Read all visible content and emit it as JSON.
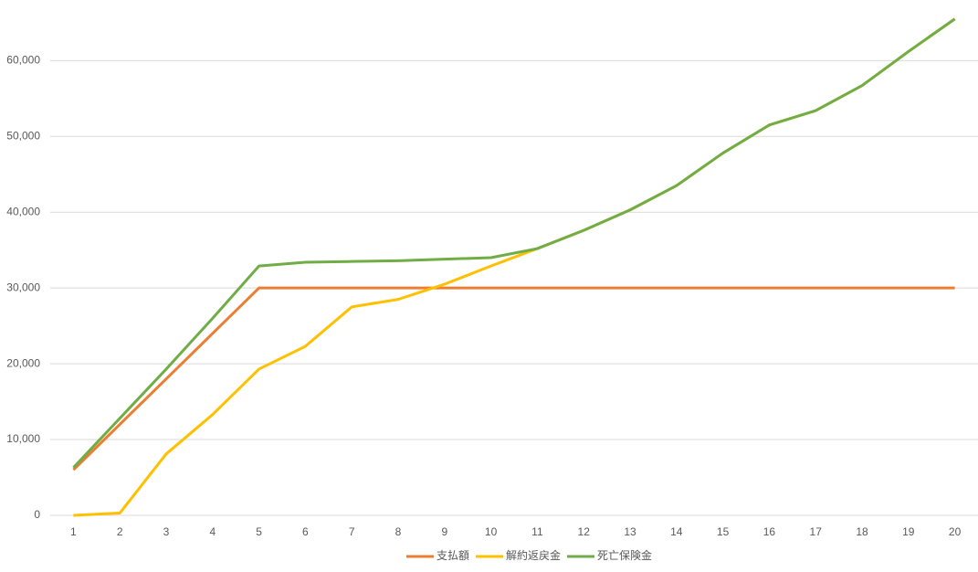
{
  "chart_data": {
    "type": "line",
    "categories": [
      "1",
      "2",
      "3",
      "4",
      "5",
      "6",
      "7",
      "8",
      "9",
      "10",
      "11",
      "12",
      "13",
      "14",
      "15",
      "16",
      "17",
      "18",
      "19",
      "20"
    ],
    "series": [
      {
        "name": "支払額",
        "color": "#ed7d31",
        "values": [
          6000,
          12000,
          18000,
          24000,
          30000,
          30000,
          30000,
          30000,
          30000,
          30000,
          30000,
          30000,
          30000,
          30000,
          30000,
          30000,
          30000,
          30000,
          30000,
          30000
        ]
      },
      {
        "name": "解約返戻金",
        "color": "#ffc000",
        "values": [
          0,
          300,
          8100,
          13300,
          19300,
          22300,
          27500,
          28500,
          30500,
          32900,
          35200,
          37600,
          40300,
          43500,
          47800,
          51500,
          53400,
          56700,
          61200,
          65500
        ]
      },
      {
        "name": "死亡保険金",
        "color": "#70ad47",
        "values": [
          6300,
          12800,
          19300,
          26000,
          32900,
          33400,
          33500,
          33600,
          33800,
          34000,
          35200,
          37600,
          40300,
          43500,
          47800,
          51500,
          53400,
          56700,
          61200,
          65500
        ]
      }
    ],
    "ylim": [
      0,
      68000
    ],
    "yticks": [
      0,
      {
        "value": 10000,
        "label": "10,000"
      },
      {
        "value": 20000,
        "label": "20,000"
      },
      {
        "value": 30000,
        "label": "30,000"
      },
      {
        "value": 40000,
        "label": "40,000"
      },
      {
        "value": 50000,
        "label": "50,000"
      },
      {
        "value": 60000,
        "label": "60,000"
      }
    ],
    "grid": true,
    "legend": "bottom"
  }
}
